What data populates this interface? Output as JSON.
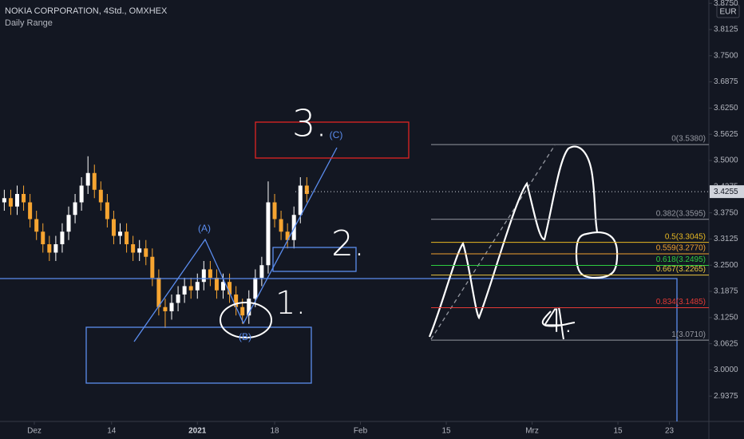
{
  "chart_data": {
    "type": "candlestick",
    "title": "NOKIA CORPORATION, 4Std., OMXHEX",
    "subtitle": "Daily Range",
    "currency": "EUR",
    "up_color": "#ffffff",
    "down_color": "#f7a531",
    "x": [
      -3.5,
      -2.75,
      -2,
      -1.25,
      -0.5,
      0.25,
      1,
      1.75,
      2.5,
      3.25,
      4,
      4.75,
      5.5,
      6.25,
      7,
      7.75,
      8.5,
      9.25,
      10,
      10.75,
      11.5,
      12.25,
      13,
      13.75,
      14.5,
      15.25,
      16,
      16.75,
      17.5,
      18.25,
      19,
      19.75,
      20.5,
      21.25,
      22,
      22.75,
      23.5,
      24.25,
      25,
      25.75,
      26.5,
      27.25,
      28,
      28.75,
      29.5,
      30.25,
      31,
      31.75
    ],
    "open": [
      3.4,
      3.41,
      3.39,
      3.42,
      3.4,
      3.36,
      3.33,
      3.3,
      3.28,
      3.3,
      3.33,
      3.37,
      3.4,
      3.44,
      3.47,
      3.43,
      3.4,
      3.36,
      3.32,
      3.33,
      3.3,
      3.28,
      3.29,
      3.27,
      3.22,
      3.15,
      3.14,
      3.16,
      3.18,
      3.2,
      3.19,
      3.21,
      3.24,
      3.22,
      3.19,
      3.21,
      3.18,
      3.15,
      3.13,
      3.17,
      3.22,
      3.25,
      3.4,
      3.36,
      3.33,
      3.31,
      3.37,
      3.44
    ],
    "high": [
      3.43,
      3.43,
      3.44,
      3.44,
      3.42,
      3.38,
      3.35,
      3.32,
      3.32,
      3.35,
      3.39,
      3.42,
      3.46,
      3.51,
      3.49,
      3.45,
      3.42,
      3.38,
      3.35,
      3.35,
      3.32,
      3.31,
      3.31,
      3.29,
      3.24,
      3.17,
      3.18,
      3.2,
      3.22,
      3.22,
      3.23,
      3.26,
      3.26,
      3.24,
      3.23,
      3.23,
      3.2,
      3.17,
      3.19,
      3.24,
      3.27,
      3.45,
      3.42,
      3.38,
      3.35,
      3.39,
      3.46,
      3.46
    ],
    "low": [
      3.38,
      3.37,
      3.37,
      3.38,
      3.34,
      3.31,
      3.28,
      3.26,
      3.26,
      3.28,
      3.31,
      3.35,
      3.38,
      3.42,
      3.41,
      3.38,
      3.34,
      3.3,
      3.3,
      3.28,
      3.26,
      3.26,
      3.25,
      3.2,
      3.13,
      3.1,
      3.12,
      3.14,
      3.16,
      3.17,
      3.17,
      3.19,
      3.2,
      3.17,
      3.17,
      3.16,
      3.13,
      3.11,
      3.11,
      3.15,
      3.2,
      3.23,
      3.34,
      3.31,
      3.29,
      3.29,
      3.35,
      3.4
    ],
    "close": [
      3.41,
      3.39,
      3.42,
      3.4,
      3.36,
      3.33,
      3.3,
      3.28,
      3.3,
      3.33,
      3.37,
      3.4,
      3.44,
      3.47,
      3.43,
      3.4,
      3.36,
      3.32,
      3.33,
      3.3,
      3.28,
      3.29,
      3.27,
      3.22,
      3.15,
      3.14,
      3.16,
      3.18,
      3.2,
      3.19,
      3.21,
      3.24,
      3.22,
      3.19,
      3.21,
      3.18,
      3.15,
      3.13,
      3.17,
      3.22,
      3.25,
      3.4,
      3.36,
      3.33,
      3.31,
      3.37,
      3.44,
      3.42
    ],
    "last_price": 3.4255,
    "xlim": [
      -4,
      78.6
    ],
    "ylim": [
      2.877,
      3.883
    ],
    "xticks": [
      {
        "value": 0,
        "label": "Dez"
      },
      {
        "value": 9,
        "label": "14"
      },
      {
        "value": 19,
        "label": "2021"
      },
      {
        "value": 28,
        "label": "18"
      },
      {
        "value": 38,
        "label": "Feb"
      },
      {
        "value": 48,
        "label": "15"
      },
      {
        "value": 58,
        "label": "Mrz"
      },
      {
        "value": 68,
        "label": "15"
      },
      {
        "value": 74,
        "label": "23"
      }
    ],
    "yticks": [
      {
        "value": 3.875,
        "label": "3.8750"
      },
      3.8125,
      {
        "value": 3.75,
        "label": "3.7500"
      },
      3.6875,
      {
        "value": 3.625,
        "label": "3.6250"
      },
      3.5625,
      {
        "value": 3.5,
        "label": "3.5000"
      },
      3.4375,
      {
        "value": 3.375,
        "label": "3.3750"
      },
      3.3125,
      {
        "value": 3.25,
        "label": "3.2500"
      },
      3.1875,
      {
        "value": 3.125,
        "label": "3.1250"
      },
      3.0625,
      {
        "value": 3,
        "label": "3.0000"
      },
      2.9375
    ],
    "fib_levels": [
      {
        "label": "0(3.5380)",
        "value": 3.538,
        "color": "#9598a1"
      },
      {
        "label": "0.382(3.3595)",
        "value": 3.3595,
        "color": "#9598a1"
      },
      {
        "label": "0.5(3.3045)",
        "value": 3.3045,
        "color": "#e8b923"
      },
      {
        "label": "0.559(3.2770)",
        "value": 3.277,
        "color": "#f0a030"
      },
      {
        "label": "0.618(3.2495)",
        "value": 3.2495,
        "color": "#2ecc40"
      },
      {
        "label": "0.667(3.2265)",
        "value": 3.2265,
        "color": "#e8c540"
      },
      {
        "label": "0.834(3.1485)",
        "value": 3.1485,
        "color": "#e53935"
      },
      {
        "label": "1(3.0710)",
        "value": 3.071,
        "color": "#9598a1"
      }
    ],
    "annotations": {
      "wave_a": "(A)",
      "wave_b": "(B)",
      "wave_c": "(C)",
      "one": "1.",
      "two": "2.",
      "three": "3.",
      "four": "4."
    }
  }
}
